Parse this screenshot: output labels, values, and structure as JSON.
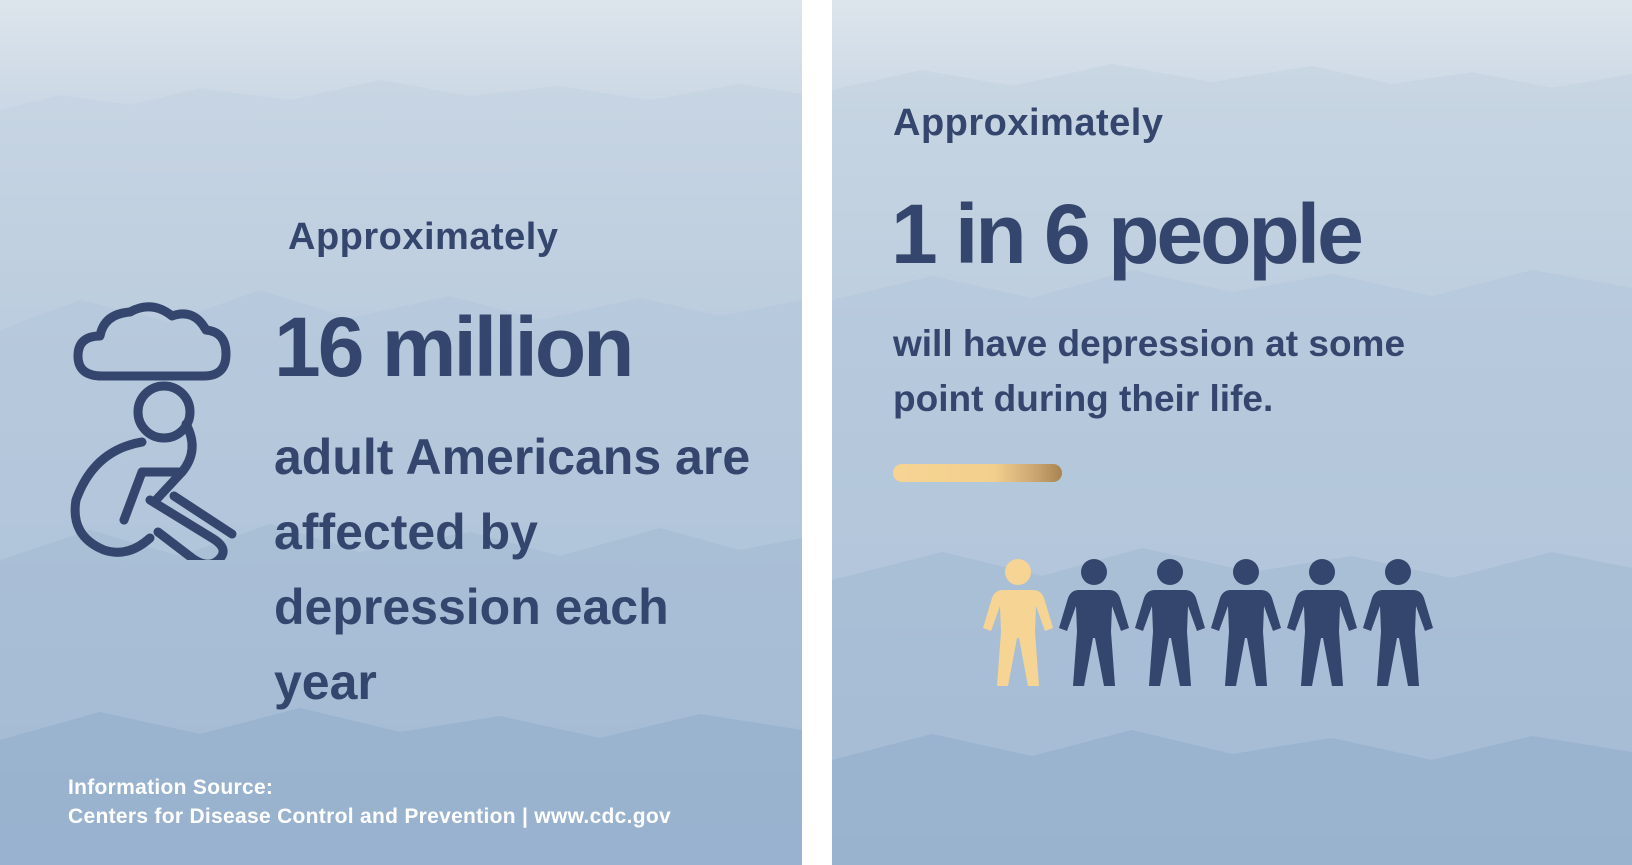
{
  "colors": {
    "text": "#34466d",
    "highlight_person": "#f6d493",
    "source_text": "#ffffff"
  },
  "left_panel": {
    "lead": "Approximately",
    "headline": "16 million",
    "body": "adult Americans are affected by depression each year",
    "icon": "sad-person-under-cloud-icon",
    "source": {
      "line1": "Information Source:",
      "line2": "Centers for Disease Control and Prevention | www.cdc.gov"
    }
  },
  "right_panel": {
    "lead": "Approximately",
    "headline": "1 in 6 people",
    "body": "will have depression at some point during their life.",
    "people": {
      "icon": "person-icon",
      "total": 6,
      "highlighted": 1
    }
  }
}
